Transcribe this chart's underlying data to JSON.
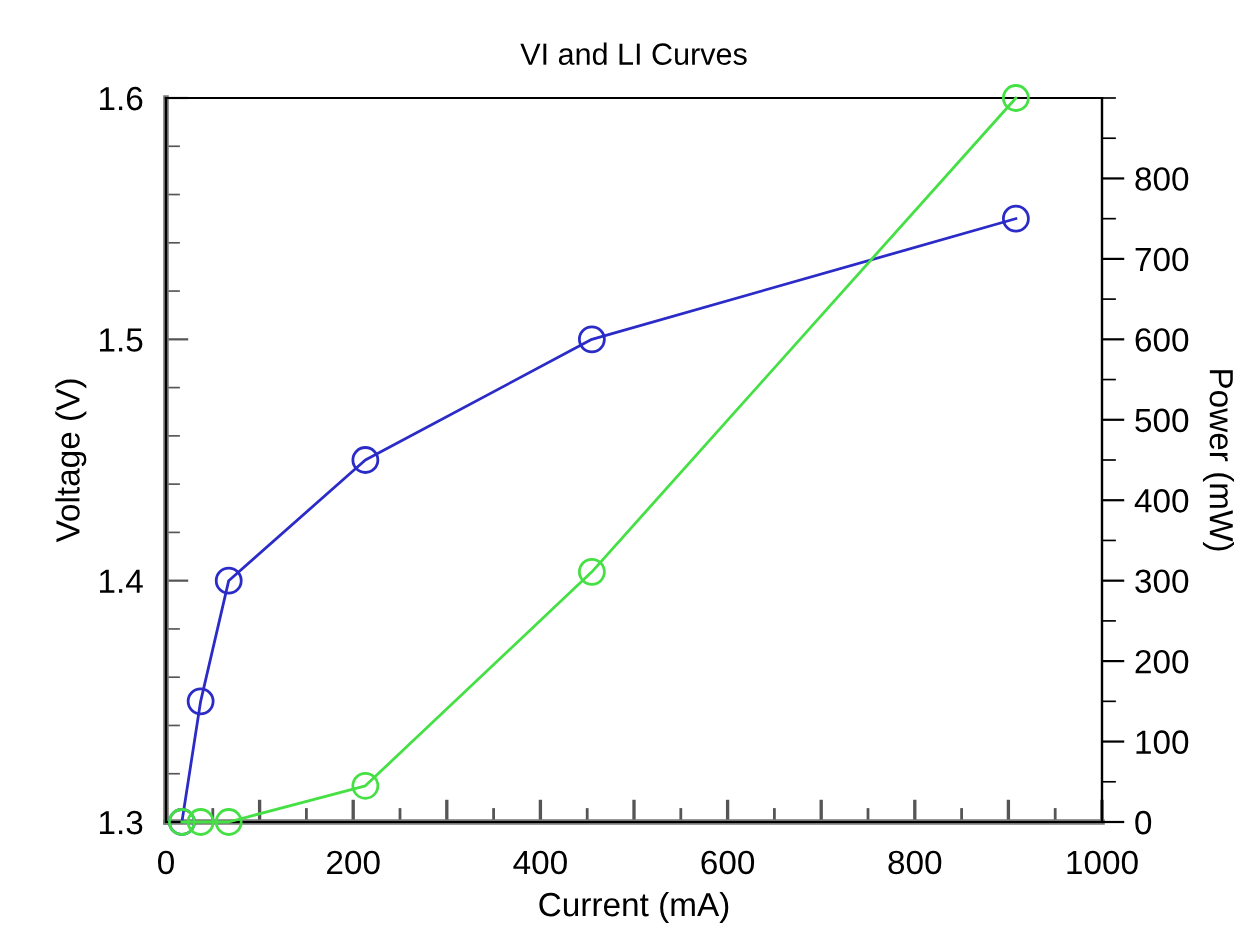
{
  "chart_data": {
    "type": "line",
    "title": "VI and LI Curves",
    "xlabel": "Current (mA)",
    "ylabel": "Voltage (V)",
    "y2label": "Power (mW)",
    "xlim": [
      0,
      1000
    ],
    "xticks": [
      0,
      {
        "value": 100,
        "label": null
      },
      200,
      {
        "value": 300,
        "label": null
      },
      400,
      {
        "value": 500,
        "label": null
      },
      600,
      {
        "value": 700,
        "label": null
      },
      800,
      {
        "value": 900,
        "label": null
      },
      1000
    ],
    "ylim": [
      1.3,
      1.6
    ],
    "yticks": [
      1.3,
      1.4,
      1.5,
      1.6
    ],
    "y2lim": [
      0,
      900
    ],
    "y2ticks": [
      0,
      100,
      200,
      300,
      400,
      500,
      600,
      700,
      800
    ],
    "marker": "circle",
    "line_style": "solid",
    "series": [
      {
        "color": "#2b2bc8",
        "x": [
          17,
          37,
          67,
          213,
          455,
          908
        ],
        "values": [
          1.3,
          1.35,
          1.4,
          1.45,
          1.5,
          1.55
        ]
      },
      {
        "color": "#44e044",
        "axis": "y2",
        "x": [
          17,
          37,
          67,
          213,
          455,
          908
        ],
        "values": [
          0,
          0,
          0,
          45,
          311,
          900
        ]
      }
    ]
  }
}
